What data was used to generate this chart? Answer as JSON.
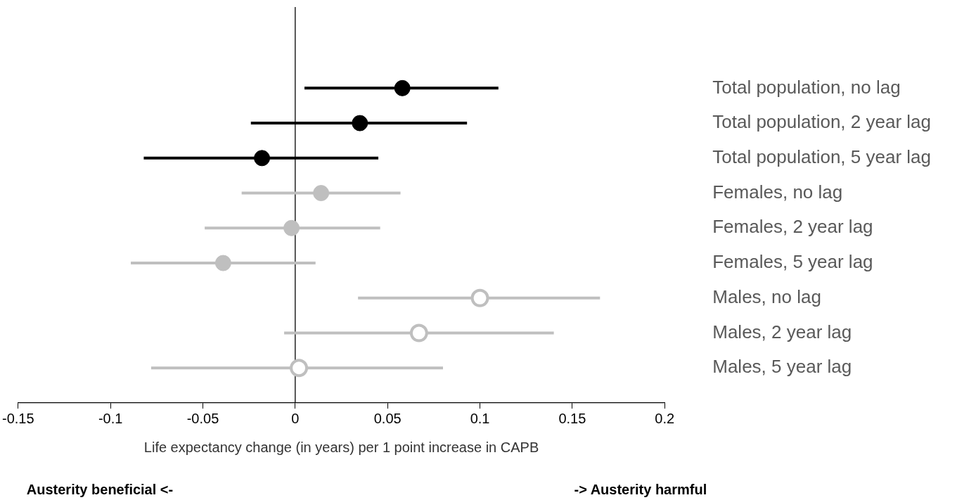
{
  "chart_data": {
    "type": "scatter",
    "orientation": "horizontal",
    "xlabel": "Life expectancy change (in years) per 1 point increase in CAPB",
    "categories": [
      "Total population, no lag",
      "Total population, 2 year lag",
      "Total population, 5 year lag",
      "Females, no lag",
      "Females, 2 year lag",
      "Females, 5 year lag",
      "Males, no lag",
      "Males, 2 year lag",
      "Males, 5 year lag"
    ],
    "series": [
      {
        "color": "#000000",
        "marker": "circle",
        "values": [
          0.058,
          0.035,
          -0.018,
          null,
          null,
          null,
          null,
          null,
          null
        ],
        "errors": [
          [
            0.005,
            0.11
          ],
          [
            -0.024,
            0.093
          ],
          [
            -0.082,
            0.045
          ],
          null,
          null,
          null,
          null,
          null,
          null
        ]
      },
      {
        "color": "#bfbfbf",
        "marker": "circle",
        "values": [
          null,
          null,
          null,
          0.014,
          -0.002,
          -0.039,
          null,
          null,
          null
        ],
        "errors": [
          null,
          null,
          null,
          [
            -0.029,
            0.057
          ],
          [
            -0.049,
            0.046
          ],
          [
            -0.089,
            0.011
          ],
          null,
          null,
          null
        ]
      },
      {
        "color": "#bfbfbf",
        "marker": "circle-open",
        "values": [
          null,
          null,
          null,
          null,
          null,
          null,
          0.1,
          0.067,
          0.002
        ],
        "errors": [
          null,
          null,
          null,
          null,
          null,
          null,
          [
            0.034,
            0.165
          ],
          [
            -0.006,
            0.14
          ],
          [
            -0.078,
            0.08
          ]
        ]
      }
    ],
    "xlim": [
      -0.15,
      0.2
    ],
    "xticks": [
      -0.15,
      -0.1,
      -0.05,
      0,
      0.05,
      0.1,
      0.15,
      0.2
    ],
    "ref_lines": [
      {
        "axis": "x",
        "value": 0,
        "color": "#000000"
      }
    ],
    "annotations": [
      "Austerity beneficial <-",
      "-> Austerity harmful"
    ],
    "grid": false,
    "legend": false
  }
}
